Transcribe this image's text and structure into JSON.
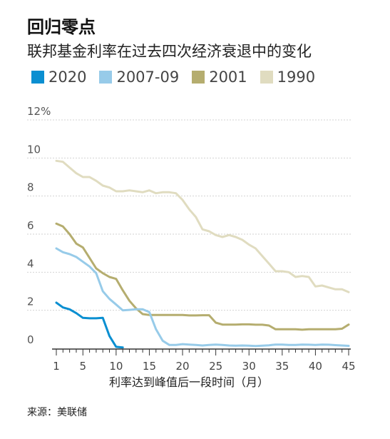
{
  "title": "回归零点",
  "subtitle": "联邦基金利率在过去四次经济衰退中的变化",
  "source": "来源：美联储",
  "colors": {
    "2020": "#0a8fd1",
    "2007-09": "#97cbe9",
    "2001": "#b5ad6f",
    "1990": "#e0dcc0",
    "grid": "#d2d2d2",
    "axis": "#333333",
    "tick_text": "#555555"
  },
  "chart_data": {
    "type": "line",
    "title": "回归零点",
    "subtitle": "联邦基金利率在过去四次经济衰退中的变化",
    "xlabel": "利率达到峰值后一段时间（月）",
    "ylabel": "",
    "xlim": [
      1,
      45
    ],
    "ylim": [
      0,
      12
    ],
    "y_unit": "%",
    "x_ticks": [
      1,
      5,
      10,
      15,
      20,
      25,
      30,
      35,
      40,
      45
    ],
    "y_ticks": [
      0,
      2,
      4,
      6,
      8,
      10,
      12
    ],
    "y_tick_labels": [
      "0",
      "2",
      "4",
      "6",
      "8",
      "10",
      "12%"
    ],
    "grid": true,
    "legend": "top-left",
    "series": [
      {
        "name": "2020",
        "key": "2020",
        "x": [
          1,
          2,
          3,
          4,
          5,
          6,
          7,
          8,
          9,
          10,
          11
        ],
        "y": [
          2.4,
          2.15,
          2.05,
          1.85,
          1.6,
          1.58,
          1.58,
          1.6,
          0.65,
          0.08,
          0.05
        ]
      },
      {
        "name": "2007-09",
        "key": "2007-09",
        "x": [
          1,
          2,
          3,
          4,
          5,
          6,
          7,
          8,
          9,
          10,
          11,
          12,
          13,
          14,
          15,
          16,
          17,
          18,
          19,
          20,
          21,
          22,
          23,
          24,
          25,
          26,
          27,
          28,
          29,
          30,
          31,
          32,
          33,
          34,
          35,
          36,
          37,
          38,
          39,
          40,
          41,
          42,
          43,
          44,
          45
        ],
        "y": [
          5.25,
          5.05,
          4.95,
          4.8,
          4.55,
          4.3,
          3.95,
          3.0,
          2.6,
          2.3,
          2.0,
          2.02,
          2.05,
          2.05,
          1.9,
          1.0,
          0.4,
          0.18,
          0.18,
          0.22,
          0.2,
          0.18,
          0.15,
          0.18,
          0.2,
          0.18,
          0.15,
          0.14,
          0.15,
          0.14,
          0.12,
          0.14,
          0.16,
          0.2,
          0.2,
          0.18,
          0.18,
          0.2,
          0.19,
          0.18,
          0.2,
          0.19,
          0.17,
          0.15,
          0.13
        ]
      },
      {
        "name": "2001",
        "key": "2001",
        "x": [
          1,
          2,
          3,
          4,
          5,
          6,
          7,
          8,
          9,
          10,
          11,
          12,
          13,
          14,
          15,
          16,
          17,
          18,
          19,
          20,
          21,
          22,
          23,
          24,
          25,
          26,
          27,
          28,
          29,
          30,
          31,
          32,
          33,
          34,
          35,
          36,
          37,
          38,
          39,
          40,
          41,
          42,
          43,
          44,
          45
        ],
        "y": [
          6.55,
          6.4,
          6.0,
          5.5,
          5.3,
          4.75,
          4.2,
          3.95,
          3.75,
          3.65,
          3.05,
          2.5,
          2.1,
          1.8,
          1.75,
          1.75,
          1.75,
          1.75,
          1.75,
          1.75,
          1.73,
          1.73,
          1.74,
          1.74,
          1.35,
          1.25,
          1.25,
          1.25,
          1.26,
          1.26,
          1.24,
          1.24,
          1.2,
          1.0,
          1.0,
          1.0,
          1.0,
          0.98,
          1.0,
          1.0,
          1.0,
          1.0,
          1.0,
          1.03,
          1.25
        ]
      },
      {
        "name": "1990",
        "key": "1990",
        "x": [
          1,
          2,
          3,
          4,
          5,
          6,
          7,
          8,
          9,
          10,
          11,
          12,
          13,
          14,
          15,
          16,
          17,
          18,
          19,
          20,
          21,
          22,
          23,
          24,
          25,
          26,
          27,
          28,
          29,
          30,
          31,
          32,
          33,
          34,
          35,
          36,
          37,
          38,
          39,
          40,
          41,
          42,
          43,
          44,
          45
        ],
        "y": [
          9.85,
          9.8,
          9.5,
          9.2,
          9.0,
          9.0,
          8.8,
          8.55,
          8.45,
          8.25,
          8.25,
          8.3,
          8.25,
          8.2,
          8.3,
          8.15,
          8.2,
          8.2,
          8.15,
          7.8,
          7.3,
          6.9,
          6.25,
          6.15,
          5.95,
          5.85,
          5.95,
          5.85,
          5.7,
          5.45,
          5.25,
          4.85,
          4.45,
          4.05,
          4.05,
          4.0,
          3.75,
          3.8,
          3.75,
          3.25,
          3.3,
          3.2,
          3.1,
          3.1,
          2.95
        ]
      }
    ]
  }
}
